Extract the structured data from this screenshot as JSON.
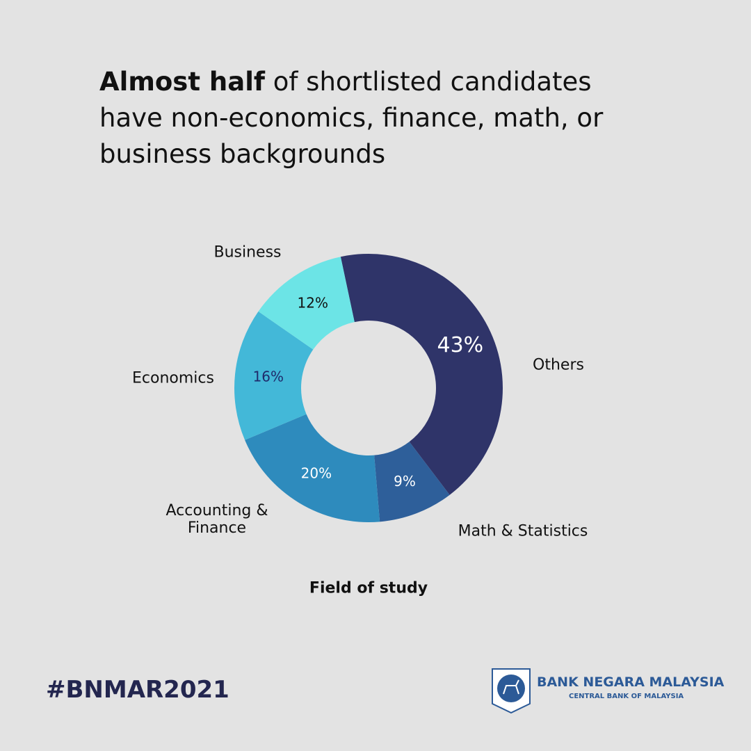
{
  "chart_data": {
    "type": "donut",
    "title_bold": "Almost half",
    "title": "of shortlisted candidates have non-economics, finance, math, or business backgrounds",
    "categories": [
      "Others",
      "Math & Statistics",
      "Accounting & Finance",
      "Economics",
      "Business"
    ],
    "values": [
      43,
      9,
      20,
      16,
      12
    ],
    "value_labels": [
      "43%",
      "9%",
      "20%",
      "16%",
      "12%"
    ],
    "colors": [
      "#2f3469",
      "#2e5f9a",
      "#2e8bbd",
      "#43b8d8",
      "#6ce4e6"
    ],
    "xlabel": "Field of study"
  },
  "footer": {
    "hashtag": "#BNMAR2021",
    "bank_name": "BANK NEGARA MALAYSIA",
    "bank_subtitle": "CENTRAL BANK OF MALAYSIA"
  }
}
